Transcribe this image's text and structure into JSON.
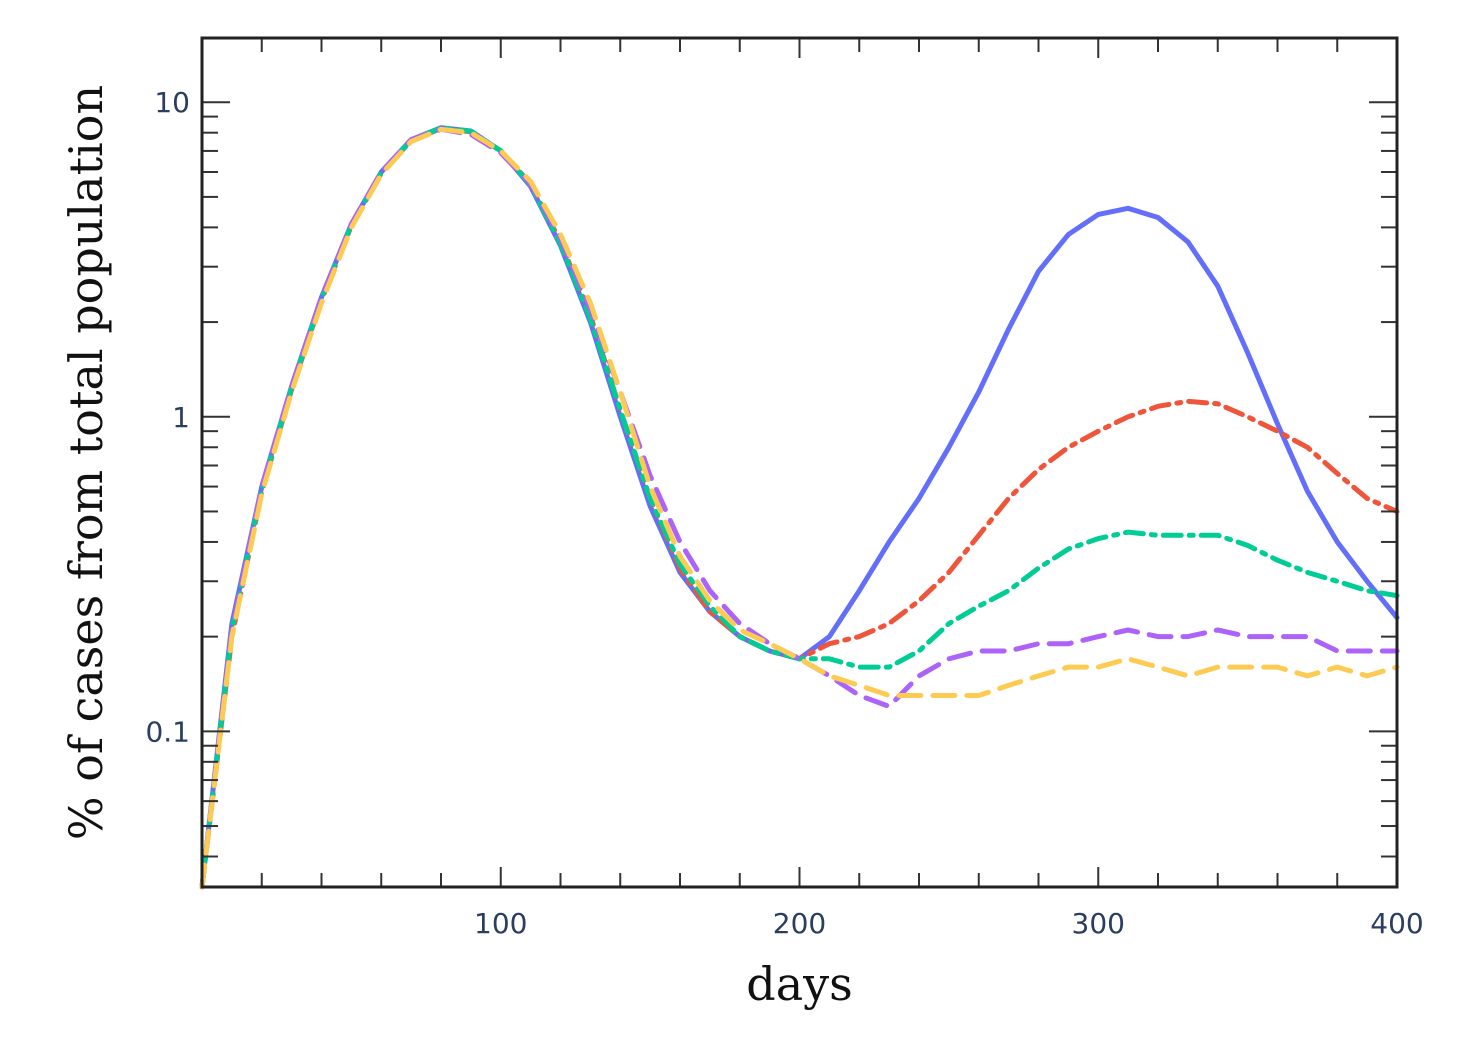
{
  "chart_data": {
    "type": "line",
    "title": "",
    "xlabel": "days",
    "ylabel": "% of cases from total population",
    "x_scale": "linear",
    "y_scale": "log",
    "xlim": [
      0,
      400
    ],
    "ylim": [
      0.032,
      16
    ],
    "x_ticks": [
      100,
      200,
      300,
      400
    ],
    "x_tick_labels": [
      "100",
      "200",
      "300",
      "400"
    ],
    "y_ticks": [
      0.1,
      1,
      10
    ],
    "y_tick_labels": [
      "0.1",
      "1",
      "10"
    ],
    "grid": false,
    "legend": "none",
    "x": [
      0,
      10,
      20,
      30,
      40,
      50,
      60,
      70,
      80,
      90,
      100,
      110,
      120,
      130,
      140,
      150,
      160,
      170,
      180,
      190,
      200,
      210,
      220,
      230,
      240,
      250,
      260,
      270,
      280,
      290,
      300,
      310,
      320,
      330,
      340,
      350,
      360,
      370,
      380,
      390,
      400
    ],
    "series": [
      {
        "color": "#636efa",
        "dash": "solid",
        "values": [
          0.032,
          0.22,
          0.6,
          1.25,
          2.4,
          4.1,
          6.0,
          7.6,
          8.3,
          8.1,
          7.0,
          5.4,
          3.5,
          2.0,
          1.0,
          0.52,
          0.32,
          0.24,
          0.2,
          0.18,
          0.17,
          0.2,
          0.28,
          0.4,
          0.55,
          0.8,
          1.2,
          1.9,
          2.9,
          3.8,
          4.4,
          4.6,
          4.3,
          3.6,
          2.6,
          1.6,
          0.95,
          0.58,
          0.4,
          0.3,
          0.23
        ]
      },
      {
        "color": "#ef553b",
        "dash": "dashdot",
        "values": [
          0.032,
          0.2,
          0.58,
          1.22,
          2.35,
          4.05,
          5.95,
          7.55,
          8.25,
          8.05,
          7.0,
          5.5,
          3.6,
          2.1,
          1.05,
          0.55,
          0.33,
          0.24,
          0.2,
          0.18,
          0.17,
          0.19,
          0.2,
          0.22,
          0.26,
          0.32,
          0.42,
          0.55,
          0.68,
          0.8,
          0.9,
          1.0,
          1.08,
          1.12,
          1.1,
          1.0,
          0.9,
          0.8,
          0.66,
          0.55,
          0.5
        ]
      },
      {
        "color": "#00cc96",
        "dash": "dashdot",
        "values": [
          0.032,
          0.21,
          0.59,
          1.24,
          2.38,
          4.08,
          5.98,
          7.58,
          8.28,
          8.08,
          7.0,
          5.45,
          3.55,
          2.05,
          1.05,
          0.55,
          0.34,
          0.25,
          0.2,
          0.18,
          0.17,
          0.17,
          0.16,
          0.16,
          0.18,
          0.22,
          0.25,
          0.28,
          0.33,
          0.38,
          0.41,
          0.43,
          0.42,
          0.42,
          0.42,
          0.39,
          0.35,
          0.32,
          0.3,
          0.28,
          0.27
        ]
      },
      {
        "color": "#ab63fa",
        "dash": "dash",
        "values": [
          0.032,
          0.21,
          0.6,
          1.25,
          2.4,
          4.1,
          6.0,
          7.6,
          8.2,
          7.9,
          6.9,
          5.5,
          3.7,
          2.2,
          1.2,
          0.65,
          0.4,
          0.28,
          0.22,
          0.19,
          0.17,
          0.15,
          0.13,
          0.12,
          0.15,
          0.17,
          0.18,
          0.18,
          0.19,
          0.19,
          0.2,
          0.21,
          0.2,
          0.2,
          0.21,
          0.2,
          0.2,
          0.2,
          0.18,
          0.18,
          0.18
        ]
      },
      {
        "color": "#fecb52",
        "dash": "dash",
        "values": [
          0.032,
          0.2,
          0.57,
          1.2,
          2.3,
          4.0,
          5.9,
          7.5,
          8.2,
          8.0,
          7.0,
          5.6,
          3.8,
          2.3,
          1.2,
          0.6,
          0.36,
          0.26,
          0.21,
          0.19,
          0.17,
          0.15,
          0.14,
          0.13,
          0.13,
          0.13,
          0.13,
          0.14,
          0.15,
          0.16,
          0.16,
          0.17,
          0.16,
          0.15,
          0.16,
          0.16,
          0.16,
          0.15,
          0.16,
          0.15,
          0.16
        ]
      }
    ]
  }
}
